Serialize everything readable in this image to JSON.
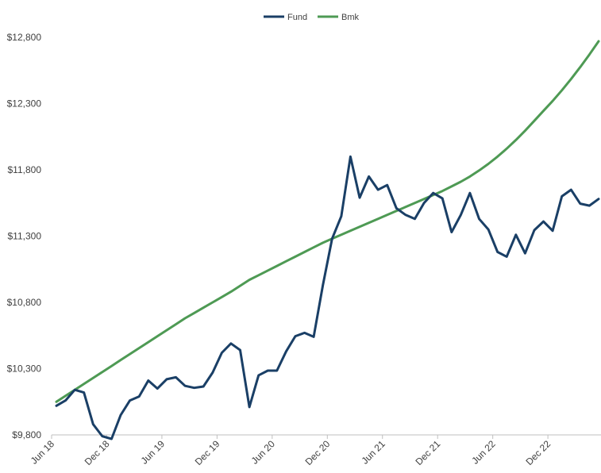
{
  "chart_data": {
    "type": "line",
    "title": "",
    "xlabel": "",
    "ylabel": "",
    "legend_position": "top-center",
    "grid": false,
    "ylim": [
      9800,
      12800
    ],
    "y_ticks": [
      "$9,800",
      "$10,300",
      "$10,800",
      "$11,300",
      "$11,800",
      "$12,300",
      "$12,800"
    ],
    "y_tick_values": [
      9800,
      10300,
      10800,
      11300,
      11800,
      12300,
      12800
    ],
    "x_ticks": [
      "Jun 18",
      "Dec 18",
      "Jun 19",
      "Dec 19",
      "Jun 20",
      "Dec 20",
      "Jun 21",
      "Dec 21",
      "Jun 22",
      "Dec 22"
    ],
    "x_tick_index": [
      0,
      6,
      12,
      18,
      24,
      30,
      36,
      42,
      48,
      54
    ],
    "x": [
      "Jun 18",
      "Jul 18",
      "Aug 18",
      "Sep 18",
      "Oct 18",
      "Nov 18",
      "Dec 18",
      "Jan 19",
      "Feb 19",
      "Mar 19",
      "Apr 19",
      "May 19",
      "Jun 19",
      "Jul 19",
      "Aug 19",
      "Sep 19",
      "Oct 19",
      "Nov 19",
      "Dec 19",
      "Jan 20",
      "Feb 20",
      "Mar 20",
      "Apr 20",
      "May 20",
      "Jun 20",
      "Jul 20",
      "Aug 20",
      "Sep 20",
      "Oct 20",
      "Nov 20",
      "Dec 20",
      "Jan 21",
      "Feb 21",
      "Mar 21",
      "Apr 21",
      "May 21",
      "Jun 21",
      "Jul 21",
      "Aug 21",
      "Sep 21",
      "Oct 21",
      "Nov 21",
      "Dec 21",
      "Jan 22",
      "Feb 22",
      "Mar 22",
      "Apr 22",
      "May 22",
      "Jun 22",
      "Jul 22",
      "Aug 22",
      "Sep 22",
      "Oct 22",
      "Nov 22",
      "Dec 22",
      "Jan 23",
      "Feb 23",
      "Mar 23",
      "Apr 23",
      "May 23"
    ],
    "series": [
      {
        "name": "Fund",
        "color": "#1a3f66",
        "values": [
          10020,
          10060,
          10140,
          10120,
          9880,
          9790,
          9770,
          9950,
          10060,
          10090,
          10210,
          10150,
          10220,
          10235,
          10170,
          10155,
          10165,
          10270,
          10420,
          10490,
          10440,
          10010,
          10250,
          10285,
          10285,
          10430,
          10545,
          10570,
          10540,
          10930,
          11280,
          11450,
          11900,
          11590,
          11750,
          11650,
          11685,
          11510,
          11460,
          11430,
          11550,
          11625,
          11585,
          11330,
          11460,
          11625,
          11430,
          11350,
          11180,
          11145,
          11310,
          11170,
          11345,
          11410,
          11340,
          11600,
          11650,
          11545,
          11530,
          11580
        ]
      },
      {
        "name": "Bmk",
        "color": "#4e9a54",
        "values": [
          10050,
          10095,
          10140,
          10185,
          10230,
          10275,
          10320,
          10365,
          10410,
          10455,
          10500,
          10545,
          10590,
          10635,
          10680,
          10720,
          10760,
          10800,
          10840,
          10880,
          10925,
          10970,
          11005,
          11040,
          11075,
          11110,
          11145,
          11180,
          11215,
          11250,
          11280,
          11310,
          11340,
          11370,
          11400,
          11430,
          11460,
          11490,
          11520,
          11550,
          11580,
          11610,
          11640,
          11675,
          11710,
          11750,
          11795,
          11845,
          11900,
          11960,
          12025,
          12095,
          12170,
          12245,
          12320,
          12400,
          12485,
          12575,
          12670,
          12770
        ]
      }
    ]
  }
}
